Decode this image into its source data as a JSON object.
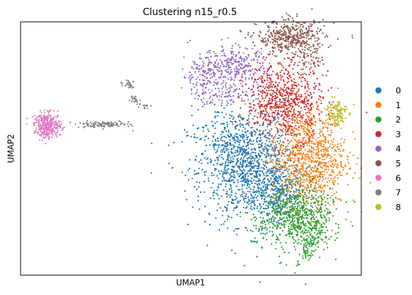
{
  "chart_data": {
    "type": "scatter",
    "title": "Clustering n15_r0.5",
    "xlabel": "UMAP1",
    "ylabel": "UMAP2",
    "xlim": [
      0,
      100
    ],
    "ylim": [
      0,
      100
    ],
    "grid": false,
    "legend": "right",
    "show_ticks": false,
    "series": [
      {
        "name": "0",
        "color": "#1f77b4",
        "blobs": [
          {
            "cx": 66.5,
            "cy": 43.5,
            "sx": 7.5,
            "sy": 11.5,
            "n": 1300,
            "rot": 10
          },
          {
            "cx": 75.5,
            "cy": 33.0,
            "sx": 3.5,
            "sy": 5.5,
            "n": 250,
            "rot": 0
          }
        ]
      },
      {
        "name": "1",
        "color": "#ff7f0e",
        "blobs": [
          {
            "cx": 84.5,
            "cy": 46.5,
            "sx": 5.5,
            "sy": 10.0,
            "n": 950,
            "rot": 0
          }
        ],
        "points": [
          [
            33.0,
            57.0
          ]
        ]
      },
      {
        "name": "2",
        "color": "#2ca02c",
        "blobs": [
          {
            "cx": 81.0,
            "cy": 23.0,
            "sx": 5.5,
            "sy": 6.0,
            "n": 650,
            "rot": -25
          },
          {
            "cx": 85.0,
            "cy": 12.0,
            "sx": 1.6,
            "sy": 5.0,
            "n": 120,
            "rot": -20
          }
        ]
      },
      {
        "name": "3",
        "color": "#d62728",
        "blobs": [
          {
            "cx": 77.5,
            "cy": 69.0,
            "sx": 5.5,
            "sy": 7.5,
            "n": 700,
            "rot": 5
          }
        ]
      },
      {
        "name": "4",
        "color": "#9467bd",
        "blobs": [
          {
            "cx": 53.5,
            "cy": 79.0,
            "sx": 3.0,
            "sy": 4.5,
            "n": 160,
            "rot": 0
          },
          {
            "cx": 63.5,
            "cy": 82.5,
            "sx": 4.5,
            "sy": 4.0,
            "n": 260,
            "rot": 0
          },
          {
            "cx": 60.0,
            "cy": 72.0,
            "sx": 4.0,
            "sy": 2.5,
            "n": 60,
            "rot": 0
          }
        ]
      },
      {
        "name": "5",
        "color": "#8c564b",
        "blobs": [
          {
            "cx": 79.5,
            "cy": 93.5,
            "sx": 5.0,
            "sy": 3.5,
            "n": 450,
            "rot": 0
          },
          {
            "cx": 85.0,
            "cy": 84.0,
            "sx": 2.0,
            "sy": 2.5,
            "n": 50,
            "rot": 0
          }
        ]
      },
      {
        "name": "6",
        "color": "#e377c2",
        "blobs": [
          {
            "cx": 8.0,
            "cy": 59.0,
            "sx": 2.0,
            "sy": 2.4,
            "n": 320,
            "rot": 0
          }
        ]
      },
      {
        "name": "7",
        "color": "#7f7f7f",
        "blobs": [
          {
            "cx": 24.0,
            "cy": 59.5,
            "sx": 4.0,
            "sy": 0.6,
            "n": 110,
            "rot": 0
          },
          {
            "cx": 32.0,
            "cy": 75.5,
            "sx": 0.9,
            "sy": 1.0,
            "n": 25,
            "rot": 0
          },
          {
            "cx": 33.5,
            "cy": 70.0,
            "sx": 0.6,
            "sy": 0.8,
            "n": 18,
            "rot": 0
          },
          {
            "cx": 36.0,
            "cy": 67.0,
            "sx": 1.1,
            "sy": 0.6,
            "n": 14,
            "rot": 0
          }
        ]
      },
      {
        "name": "8",
        "color": "#bcbd22",
        "blobs": [
          {
            "cx": 92.5,
            "cy": 64.0,
            "sx": 1.6,
            "sy": 2.8,
            "n": 130,
            "rot": 0
          }
        ]
      }
    ]
  }
}
